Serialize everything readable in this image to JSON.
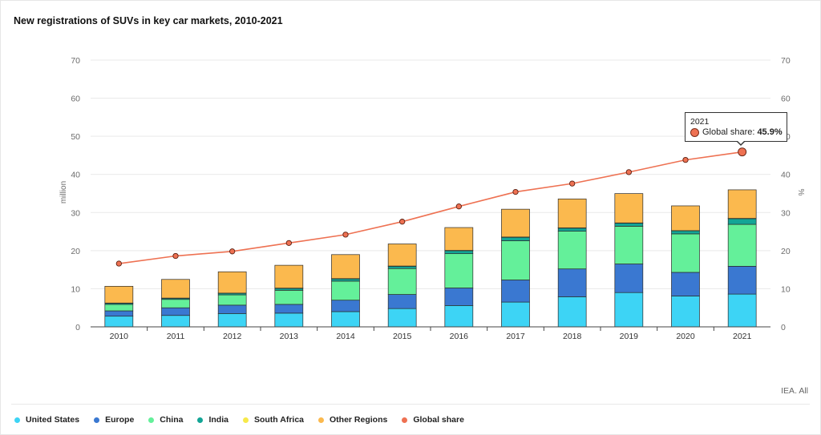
{
  "title": "New registrations of SUVs in key car markets, 2010-2021",
  "source": "IEA. All",
  "colors": {
    "United States": "#3dd4f5",
    "Europe": "#3a78d1",
    "China": "#64f09a",
    "India": "#13a596",
    "South Africa": "#f7e94a",
    "Other Regions": "#fbb94e",
    "Global share": "#ee7152"
  },
  "legend": [
    {
      "label": "United States",
      "color": "#3dd4f5"
    },
    {
      "label": "Europe",
      "color": "#3a78d1"
    },
    {
      "label": "China",
      "color": "#64f09a"
    },
    {
      "label": "India",
      "color": "#13a596"
    },
    {
      "label": "South Africa",
      "color": "#f7e94a"
    },
    {
      "label": "Other Regions",
      "color": "#fbb94e"
    },
    {
      "label": "Global share",
      "color": "#ee7152"
    }
  ],
  "tooltip": {
    "year": "2021",
    "label": "Global share:",
    "value": "45.9%"
  },
  "chart_data": {
    "type": "bar",
    "stacked": true,
    "categories": [
      "2010",
      "2011",
      "2012",
      "2013",
      "2014",
      "2015",
      "2016",
      "2017",
      "2018",
      "2019",
      "2020",
      "2021"
    ],
    "ylabel": "million",
    "y2label": "%",
    "ylim": [
      0,
      70
    ],
    "y2lim": [
      0,
      70
    ],
    "yticks": [
      0,
      10,
      20,
      30,
      40,
      50,
      60,
      70
    ],
    "grid": true,
    "legend_position": "bottom",
    "series": [
      {
        "name": "United States",
        "values": [
          2.8,
          3.0,
          3.5,
          3.6,
          4.0,
          4.8,
          5.6,
          6.5,
          7.9,
          9.0,
          8.1,
          8.6
        ]
      },
      {
        "name": "Europe",
        "values": [
          1.4,
          2.0,
          2.2,
          2.3,
          3.0,
          3.7,
          4.6,
          5.8,
          7.3,
          7.5,
          6.2,
          7.3
        ]
      },
      {
        "name": "China",
        "values": [
          1.7,
          2.2,
          2.7,
          3.7,
          5.0,
          6.8,
          9.0,
          10.3,
          9.9,
          9.9,
          10.1,
          11.0
        ]
      },
      {
        "name": "India",
        "values": [
          0.3,
          0.3,
          0.4,
          0.5,
          0.6,
          0.6,
          0.8,
          0.9,
          0.8,
          0.8,
          0.8,
          1.5
        ]
      },
      {
        "name": "South Africa",
        "values": [
          0.05,
          0.05,
          0.05,
          0.06,
          0.06,
          0.06,
          0.06,
          0.07,
          0.07,
          0.07,
          0.05,
          0.06
        ]
      },
      {
        "name": "Other Regions",
        "values": [
          4.4,
          4.9,
          5.6,
          6.0,
          6.3,
          5.8,
          6.0,
          7.3,
          7.6,
          7.7,
          6.5,
          7.5
        ]
      }
    ],
    "line_series": {
      "name": "Global share",
      "axis": "right",
      "values": [
        16.6,
        18.6,
        19.8,
        22.0,
        24.2,
        27.6,
        31.6,
        35.4,
        37.6,
        40.6,
        43.8,
        45.9
      ]
    }
  }
}
